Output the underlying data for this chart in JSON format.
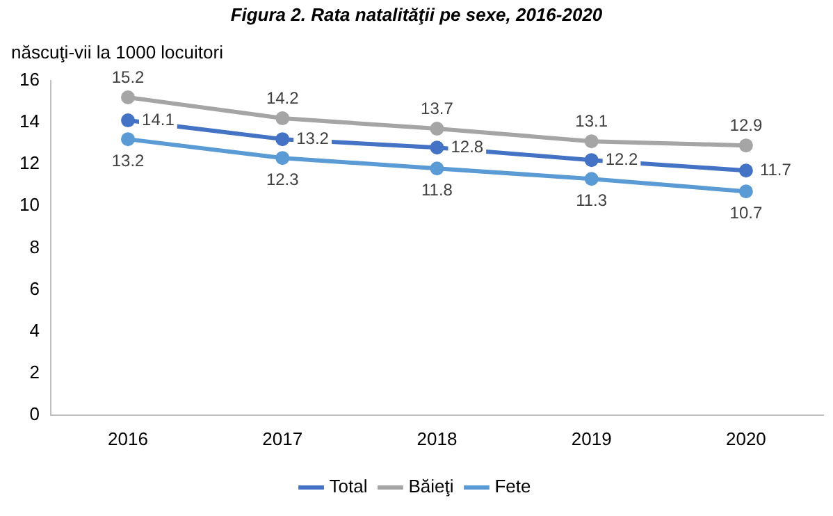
{
  "chart_data": {
    "type": "line",
    "title": "Figura 2. Rata natalităţii pe sexe, 2016-2020",
    "ylabel": "născuţi-vii la 1000 locuitori",
    "categories": [
      "2016",
      "2017",
      "2018",
      "2019",
      "2020"
    ],
    "series": [
      {
        "name": "Total",
        "color": "#4472c4",
        "values": [
          14.1,
          13.2,
          12.8,
          12.2,
          11.7
        ]
      },
      {
        "name": "Băieţi",
        "color": "#a5a5a5",
        "values": [
          15.2,
          14.2,
          13.7,
          13.1,
          12.9
        ]
      },
      {
        "name": "Fete",
        "color": "#5b9bd5",
        "values": [
          13.2,
          12.3,
          11.8,
          11.3,
          10.7
        ]
      }
    ],
    "ylim": [
      0,
      16
    ],
    "yticks": [
      0,
      2,
      4,
      6,
      8,
      10,
      12,
      14,
      16
    ],
    "grid": false,
    "legend": "bottom",
    "marker": "circle",
    "line_style": "solid",
    "data_labels": true
  }
}
